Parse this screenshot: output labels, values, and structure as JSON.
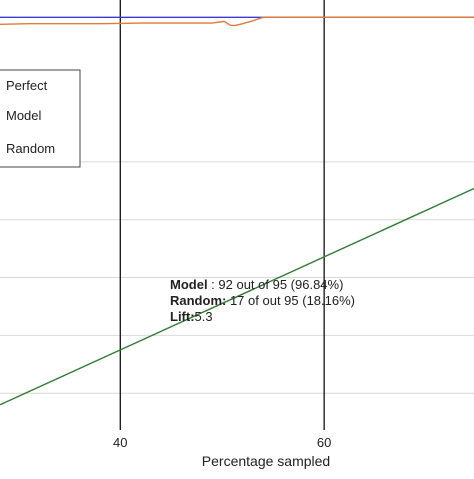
{
  "chart_data": {
    "type": "line",
    "xlabel": "Percentage sampled",
    "ylabel": "",
    "xlim": [
      28.2,
      74.7
    ],
    "ylim": [
      29.5,
      103
    ],
    "x_ticks": [
      40,
      60
    ],
    "x_tick_labels": [
      "40",
      "60"
    ],
    "y_gridlines": [
      35,
      45,
      55,
      65,
      75
    ],
    "grid": true,
    "legend_position": "top-left",
    "series": [
      {
        "name": "Perfect",
        "color": "#3a3ad8",
        "x": [
          28.2,
          74.7
        ],
        "y": [
          100,
          100
        ]
      },
      {
        "name": "Model",
        "color": "#e07b39",
        "x": [
          28.2,
          31,
          34,
          38,
          42,
          46,
          49,
          50.2,
          50.8,
          51.3,
          52,
          53,
          54,
          55,
          60,
          65,
          70,
          74.7
        ],
        "y": [
          98.8,
          98.9,
          98.9,
          98.9,
          99.0,
          99.0,
          99.0,
          99.3,
          98.6,
          98.6,
          98.9,
          99.4,
          100,
          100,
          100,
          100,
          100,
          100
        ]
      },
      {
        "name": "Random",
        "color": "#2e7d32",
        "x": [
          28.2,
          74.7
        ],
        "y": [
          33,
          70.4
        ]
      }
    ],
    "annotations": [
      {
        "label": "Model",
        "text": " : 92 out of 95 (96.84%)"
      },
      {
        "label": "Random:",
        "text": " 17 of out 95 (18.16%)"
      },
      {
        "label": "Lift:",
        "text": "5.3"
      }
    ]
  }
}
